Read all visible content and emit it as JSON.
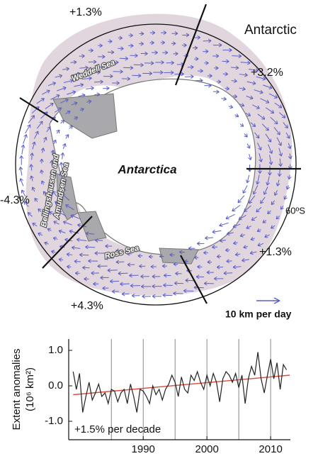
{
  "map": {
    "title": "Antarctic",
    "continent": "Antarctica",
    "sectors": [
      "+1.3%",
      "+3.2%",
      "-4.3%",
      "+1.3%",
      "+4.3%"
    ],
    "seas": {
      "weddell": "Weddell Sea",
      "bellingshausen": [
        "Bellingshausen and",
        "Amundsen Sea"
      ],
      "ross": "Ross Sea"
    },
    "latitude": "60ºS",
    "scale": "10 km per day"
  },
  "chart_data": {
    "type": "line",
    "ylabel": [
      "Extent anomalies",
      "(10⁶ km²)"
    ],
    "annotation": "+1.5% per decade",
    "color": "#222222",
    "x": [
      1979,
      1979.5,
      1980,
      1980.5,
      1981,
      1981.5,
      1982,
      1982.5,
      1983,
      1983.5,
      1984,
      1984.5,
      1985,
      1985.5,
      1986,
      1986.5,
      1987,
      1987.5,
      1988,
      1988.5,
      1989,
      1989.5,
      1990,
      1990.5,
      1991,
      1991.5,
      1992,
      1992.5,
      1993,
      1993.5,
      1994,
      1994.5,
      1995,
      1995.5,
      1996,
      1996.5,
      1997,
      1997.5,
      1998,
      1998.5,
      1999,
      1999.5,
      2000,
      2000.5,
      2001,
      2001.5,
      2002,
      2002.5,
      2003,
      2003.5,
      2004,
      2004.5,
      2005,
      2005.5,
      2006,
      2006.5,
      2007,
      2007.5,
      2008,
      2008.5,
      2009,
      2009.5,
      2010,
      2010.5,
      2011,
      2011.5,
      2012,
      2012.5
    ],
    "values": [
      0.4,
      -0.1,
      0.35,
      -0.75,
      -0.3,
      0.1,
      -0.4,
      -0.2,
      0.05,
      -0.3,
      -0.2,
      -0.5,
      -0.1,
      -0.15,
      -0.45,
      -0.2,
      -0.1,
      -0.5,
      0.05,
      -0.3,
      -0.75,
      -0.1,
      -0.15,
      -0.3,
      -0.5,
      0.0,
      -0.25,
      -0.1,
      -0.4,
      -0.1,
      0.05,
      0.3,
      0.1,
      -0.3,
      0.25,
      -0.1,
      -0.2,
      0.3,
      0.15,
      0.4,
      0.1,
      -0.1,
      0.3,
      0.0,
      0.35,
      0.1,
      -0.45,
      0.2,
      0.4,
      0.3,
      0.1,
      0.35,
      -0.05,
      0.3,
      -0.5,
      0.2,
      0.55,
      0.3,
      0.95,
      0.2,
      -0.2,
      0.3,
      0.75,
      0.2,
      0.65,
      -0.1,
      0.6,
      0.45
    ],
    "trend": {
      "color": "#e0483a",
      "x": [
        1979,
        2013
      ],
      "values": [
        -0.25,
        0.3
      ]
    },
    "vlines": [
      1985,
      1990,
      1995,
      2000,
      2005,
      2010
    ],
    "xlim": [
      1978.3,
      2013.1
    ],
    "ylim": [
      -1.52,
      1.32
    ],
    "xticks": [
      1990,
      2000,
      2010
    ],
    "yticks": [
      {
        "value": 1,
        "label": "1.0"
      },
      {
        "value": 0,
        "label": "0.0"
      },
      {
        "value": -1,
        "label": "-1.0"
      }
    ]
  }
}
